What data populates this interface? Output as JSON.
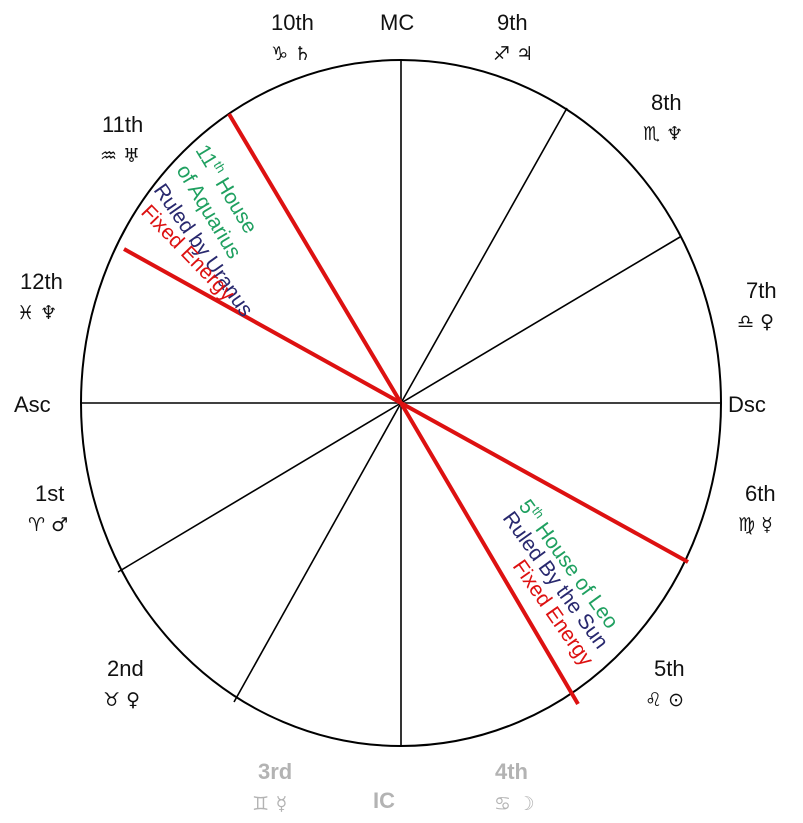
{
  "colors": {
    "green": "#1fa060",
    "navy": "#28286e",
    "red": "#dd1111",
    "line": "#000000",
    "faded": "#9a9a9a"
  },
  "axes": {
    "top": "MC",
    "left": "Asc",
    "right": "Dsc",
    "bottom": "IC"
  },
  "houses": [
    {
      "id": "h10",
      "name": "10th",
      "symbols": "♑ ♄"
    },
    {
      "id": "h9",
      "name": "9th",
      "symbols": "♐ ♃"
    },
    {
      "id": "h8",
      "name": "8th",
      "symbols": "♏ ♆"
    },
    {
      "id": "h11",
      "name": "11th",
      "symbols": "♒ ♅"
    },
    {
      "id": "h7",
      "name": "7th",
      "symbols": "♎ ♀"
    },
    {
      "id": "h12",
      "name": "12th",
      "symbols": "♓ ♆"
    },
    {
      "id": "h1",
      "name": "1st",
      "symbols": "♈ ♂"
    },
    {
      "id": "h6",
      "name": "6th",
      "symbols": "♍ ☿"
    },
    {
      "id": "h2",
      "name": "2nd",
      "symbols": "♉ ♀"
    },
    {
      "id": "h5",
      "name": "5th",
      "symbols": "♌ ⊙"
    },
    {
      "id": "h3",
      "name": "3rd",
      "symbols": "♊ ☿"
    },
    {
      "id": "h4",
      "name": "4th",
      "symbols": "♋ ☽"
    }
  ],
  "annotations": {
    "aquarius": {
      "line1_main": "11",
      "line1_sup": "th",
      "line1_rest": " House",
      "line2": "of Aquarius",
      "line3": "Ruled by Uranus",
      "line4": "Fixed Energy"
    },
    "leo": {
      "line1_main": "5",
      "line1_sup": "th",
      "line1_rest": " House of Leo",
      "line2": "Ruled By the Sun",
      "line3": "Fixed Energy"
    }
  }
}
